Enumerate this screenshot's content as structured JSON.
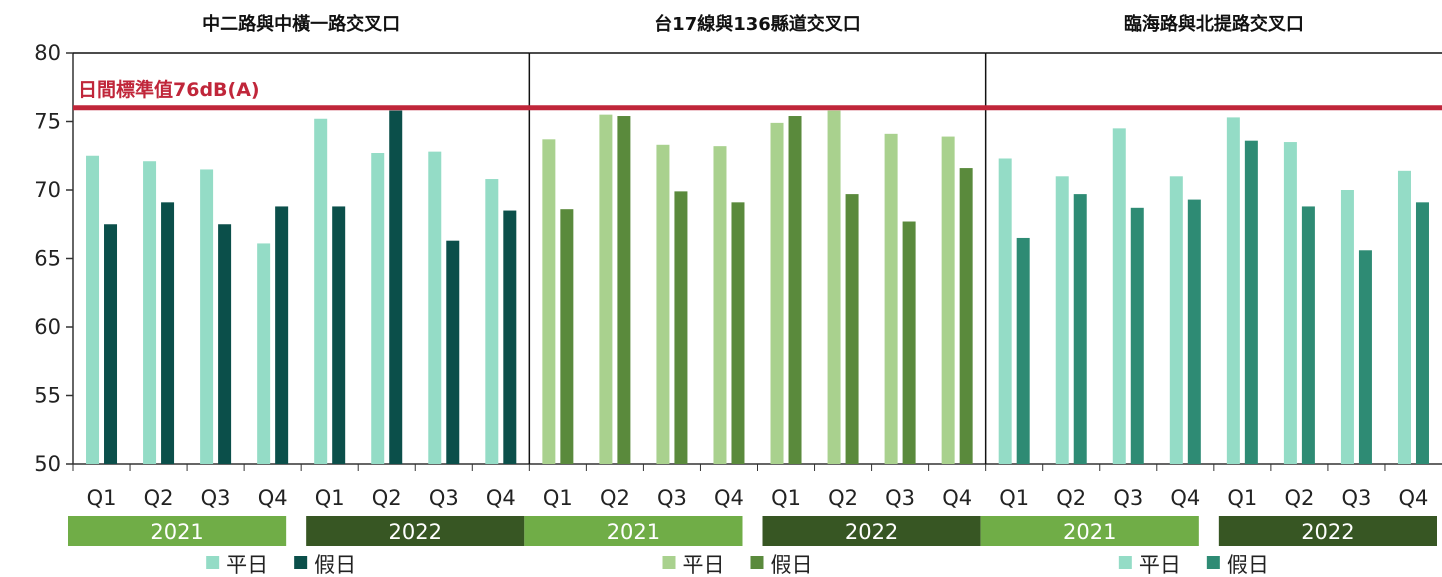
{
  "chart_data": {
    "type": "bar",
    "ylim": [
      50,
      80
    ],
    "yticks": [
      50,
      55,
      60,
      65,
      70,
      75,
      80
    ],
    "categories": [
      "Q1",
      "Q2",
      "Q3",
      "Q4",
      "Q1",
      "Q2",
      "Q3",
      "Q4"
    ],
    "years": [
      "2021",
      "2022"
    ],
    "standard": {
      "value": 76,
      "label": "日間標準值76dB(A)",
      "color": "#c0263a"
    },
    "panels": [
      {
        "title": "中二路與中橫一路交叉口",
        "series": [
          {
            "name": "平日",
            "color": "#94dcc6",
            "values": [
              72.5,
              72.1,
              71.5,
              66.1,
              75.2,
              72.7,
              72.8,
              70.8
            ]
          },
          {
            "name": "假日",
            "color": "#0b4f4a",
            "values": [
              67.5,
              69.1,
              67.5,
              68.8,
              68.8,
              75.8,
              66.3,
              68.5
            ]
          }
        ]
      },
      {
        "title": "台17線與136縣道交叉口",
        "series": [
          {
            "name": "平日",
            "color": "#a9d18e",
            "values": [
              73.7,
              75.5,
              73.3,
              73.2,
              74.9,
              75.8,
              74.1,
              73.9
            ]
          },
          {
            "name": "假日",
            "color": "#5a8a3c",
            "values": [
              68.6,
              75.4,
              69.9,
              69.1,
              75.4,
              69.7,
              67.7,
              71.6
            ]
          }
        ]
      },
      {
        "title": "臨海路與北提路交叉口",
        "series": [
          {
            "name": "平日",
            "color": "#94dcc6",
            "values": [
              72.3,
              71.0,
              74.5,
              71.0,
              75.3,
              73.5,
              70.0,
              71.4
            ]
          },
          {
            "name": "假日",
            "color": "#2e8b74",
            "values": [
              66.5,
              69.7,
              68.7,
              69.3,
              73.6,
              68.8,
              65.6,
              69.1
            ]
          }
        ]
      }
    ],
    "year_colors": {
      "2021": "#70ad47",
      "2022": "#375623"
    }
  }
}
